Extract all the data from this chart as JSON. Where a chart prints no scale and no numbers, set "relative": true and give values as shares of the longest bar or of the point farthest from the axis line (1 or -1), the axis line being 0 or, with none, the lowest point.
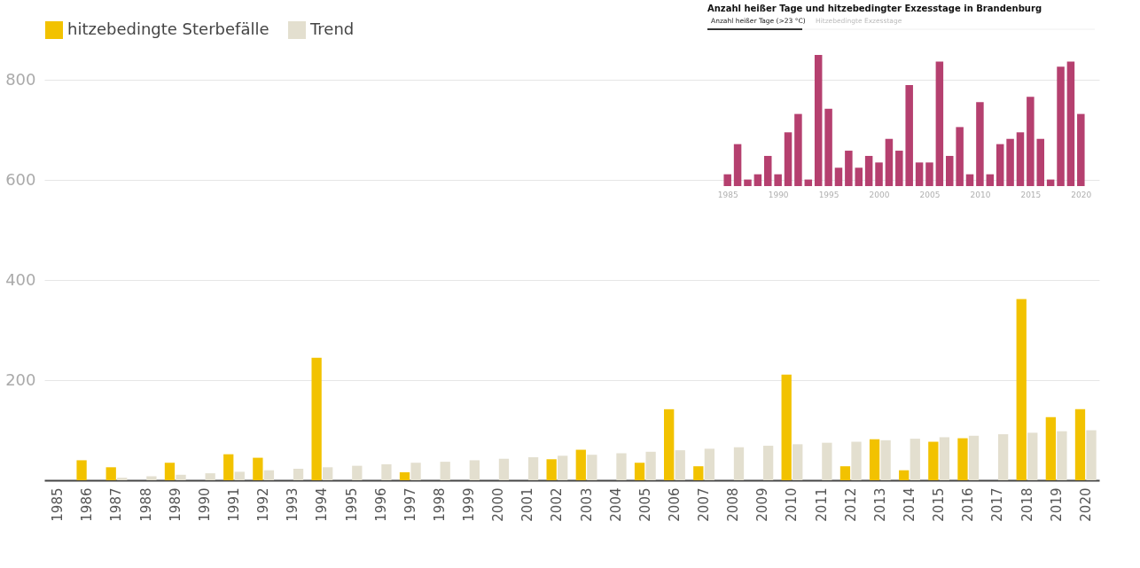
{
  "chart_data": [
    {
      "type": "bar",
      "categories": [
        "1985",
        "1986",
        "1987",
        "1988",
        "1989",
        "1990",
        "1991",
        "1992",
        "1993",
        "1994",
        "1995",
        "1996",
        "1997",
        "1998",
        "1999",
        "2000",
        "2001",
        "2002",
        "2003",
        "2004",
        "2005",
        "2006",
        "2007",
        "2008",
        "2009",
        "2010",
        "2011",
        "2012",
        "2013",
        "2014",
        "2015",
        "2016",
        "2017",
        "2018",
        "2019",
        "2020"
      ],
      "series": [
        {
          "name": "hitzebedingte Sterbefälle",
          "color": "#f2c200",
          "values": [
            null,
            40,
            26,
            null,
            35,
            null,
            52,
            45,
            null,
            245,
            null,
            null,
            16,
            null,
            null,
            null,
            null,
            42,
            61,
            null,
            35,
            142,
            28,
            null,
            null,
            211,
            null,
            28,
            82,
            20,
            77,
            84,
            null,
            362,
            126,
            142
          ]
        },
        {
          "name": "Trend",
          "color": "#e3dfcf",
          "values": [
            null,
            null,
            5,
            8,
            11,
            14,
            17,
            20,
            23,
            26,
            29,
            32,
            35,
            37,
            40,
            43,
            46,
            49,
            51,
            54,
            57,
            60,
            63,
            66,
            69,
            72,
            75,
            77,
            80,
            83,
            86,
            89,
            92,
            95,
            98,
            100
          ]
        }
      ],
      "ylim": [
        0,
        850
      ],
      "yticks": [
        200,
        400,
        600,
        800
      ],
      "grid": "y",
      "legend": "top left"
    },
    {
      "type": "bar",
      "title": "Anzahl heißer Tage und hitzebedingter Exzesstage in Brandenburg",
      "annotations": [
        "Anzahl heißer Tage (>23 °C)",
        "Hitzebedingte Exzesstage"
      ],
      "x": [
        1985,
        1986,
        1987,
        1988,
        1989,
        1990,
        1991,
        1992,
        1993,
        1994,
        1995,
        1996,
        1997,
        1998,
        1999,
        2000,
        2001,
        2002,
        2003,
        2004,
        2005,
        2006,
        2007,
        2008,
        2009,
        2010,
        2011,
        2012,
        2013,
        2014,
        2015,
        2016,
        2017,
        2018,
        2019,
        2020
      ],
      "values": [
        0.09,
        0.32,
        0.05,
        0.09,
        0.23,
        0.09,
        0.41,
        0.55,
        0.05,
        1,
        0.59,
        0.14,
        0.27,
        0.14,
        0.23,
        0.18,
        0.36,
        0.27,
        0.77,
        0.18,
        0.18,
        0.95,
        0.23,
        0.45,
        0.09,
        0.64,
        0.09,
        0.32,
        0.36,
        0.41,
        0.68,
        0.36,
        0.05,
        0.91,
        0.95,
        0.55
      ],
      "color": "#b5406f",
      "relative": true,
      "xlim": [
        1984.5,
        2020.5
      ],
      "xticks": [
        1985,
        1990,
        1995,
        2000,
        2005,
        2010,
        2015,
        2020
      ],
      "tick_labels": "x"
    }
  ]
}
